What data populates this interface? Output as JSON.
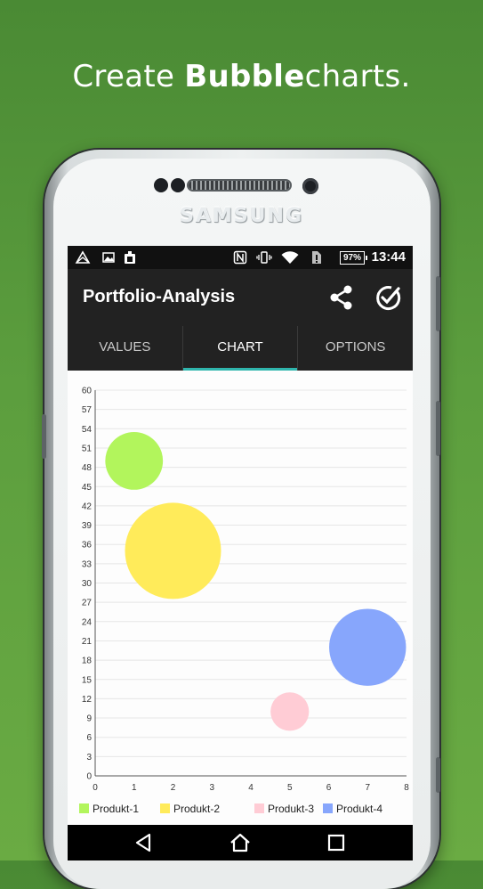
{
  "promo": {
    "prefix": "Create ",
    "bold": "Bubble",
    "suffix": "charts."
  },
  "device": {
    "brand": "SAMSUNG"
  },
  "status_bar": {
    "battery": "97%",
    "time": "13:44"
  },
  "app": {
    "title": "Portfolio-Analysis",
    "share_icon": "share-icon",
    "check_icon": "check-circle-icon"
  },
  "tabs": [
    {
      "label": "VALUES",
      "active": false
    },
    {
      "label": "CHART",
      "active": true
    },
    {
      "label": "OPTIONS",
      "active": false
    }
  ],
  "nav": {
    "back_icon": "back-triangle-icon",
    "home_icon": "home-icon",
    "recents_icon": "recents-square-icon"
  },
  "chart_data": {
    "type": "scatter",
    "subtype": "bubble",
    "xlim": [
      0,
      8
    ],
    "ylim": [
      0,
      60
    ],
    "x_ticks": [
      0,
      1,
      2,
      3,
      4,
      5,
      6,
      7,
      8
    ],
    "y_ticks": [
      0,
      3,
      6,
      9,
      12,
      15,
      18,
      21,
      24,
      27,
      30,
      33,
      36,
      39,
      42,
      45,
      48,
      51,
      54,
      57,
      60
    ],
    "grid": true,
    "legend_position": "bottom",
    "series": [
      {
        "name": "Produkt-1",
        "color": "#b2f55c",
        "points": [
          {
            "x": 1,
            "y": 49,
            "size": 3
          }
        ]
      },
      {
        "name": "Produkt-2",
        "color": "#ffeb5a",
        "points": [
          {
            "x": 2,
            "y": 35,
            "size": 5
          }
        ]
      },
      {
        "name": "Produkt-3",
        "color": "#ffccd5",
        "points": [
          {
            "x": 5,
            "y": 10,
            "size": 2
          }
        ]
      },
      {
        "name": "Produkt-4",
        "color": "#87a6fc",
        "points": [
          {
            "x": 7,
            "y": 20,
            "size": 4
          }
        ]
      }
    ]
  }
}
